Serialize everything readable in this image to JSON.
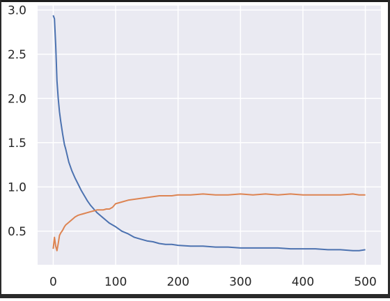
{
  "chart_data": {
    "type": "line",
    "title": "",
    "xlabel": "",
    "ylabel": "",
    "xlim": [
      -25,
      525
    ],
    "ylim": [
      0.12,
      3.05
    ],
    "xticks": [
      "0",
      "100",
      "200",
      "300",
      "400",
      "500"
    ],
    "yticks": [
      "0.5",
      "1.0",
      "1.5",
      "2.0",
      "2.5",
      "3.0"
    ],
    "grid": true,
    "style": "seaborn-darkgrid",
    "series": [
      {
        "color": "#4c72b0",
        "x": [
          0,
          2,
          4,
          6,
          8,
          10,
          12,
          15,
          18,
          20,
          25,
          30,
          35,
          40,
          45,
          50,
          55,
          60,
          65,
          70,
          75,
          80,
          85,
          90,
          95,
          100,
          110,
          120,
          130,
          140,
          150,
          160,
          170,
          180,
          190,
          200,
          220,
          240,
          260,
          280,
          300,
          320,
          340,
          360,
          380,
          400,
          420,
          440,
          460,
          480,
          490,
          500
        ],
        "y": [
          2.94,
          2.9,
          2.6,
          2.2,
          2.0,
          1.85,
          1.74,
          1.6,
          1.48,
          1.43,
          1.28,
          1.18,
          1.1,
          1.03,
          0.96,
          0.9,
          0.84,
          0.79,
          0.75,
          0.71,
          0.68,
          0.65,
          0.62,
          0.59,
          0.57,
          0.55,
          0.5,
          0.47,
          0.43,
          0.41,
          0.39,
          0.38,
          0.36,
          0.35,
          0.35,
          0.34,
          0.33,
          0.33,
          0.32,
          0.32,
          0.31,
          0.31,
          0.31,
          0.31,
          0.3,
          0.3,
          0.3,
          0.29,
          0.29,
          0.28,
          0.28,
          0.29
        ]
      },
      {
        "color": "#dd8452",
        "x": [
          0,
          2,
          4,
          6,
          8,
          10,
          12,
          15,
          18,
          20,
          25,
          30,
          35,
          40,
          45,
          50,
          55,
          60,
          65,
          70,
          75,
          80,
          85,
          90,
          95,
          100,
          110,
          120,
          130,
          140,
          150,
          160,
          170,
          180,
          190,
          200,
          220,
          240,
          260,
          280,
          300,
          320,
          340,
          360,
          380,
          400,
          420,
          440,
          460,
          480,
          490,
          500
        ],
        "y": [
          0.3,
          0.43,
          0.33,
          0.28,
          0.36,
          0.45,
          0.48,
          0.51,
          0.55,
          0.57,
          0.6,
          0.63,
          0.66,
          0.68,
          0.69,
          0.7,
          0.71,
          0.72,
          0.73,
          0.74,
          0.74,
          0.74,
          0.75,
          0.75,
          0.77,
          0.81,
          0.83,
          0.85,
          0.86,
          0.87,
          0.88,
          0.89,
          0.9,
          0.9,
          0.9,
          0.91,
          0.91,
          0.92,
          0.91,
          0.91,
          0.92,
          0.91,
          0.92,
          0.91,
          0.92,
          0.91,
          0.91,
          0.91,
          0.91,
          0.92,
          0.91,
          0.91
        ]
      }
    ]
  }
}
